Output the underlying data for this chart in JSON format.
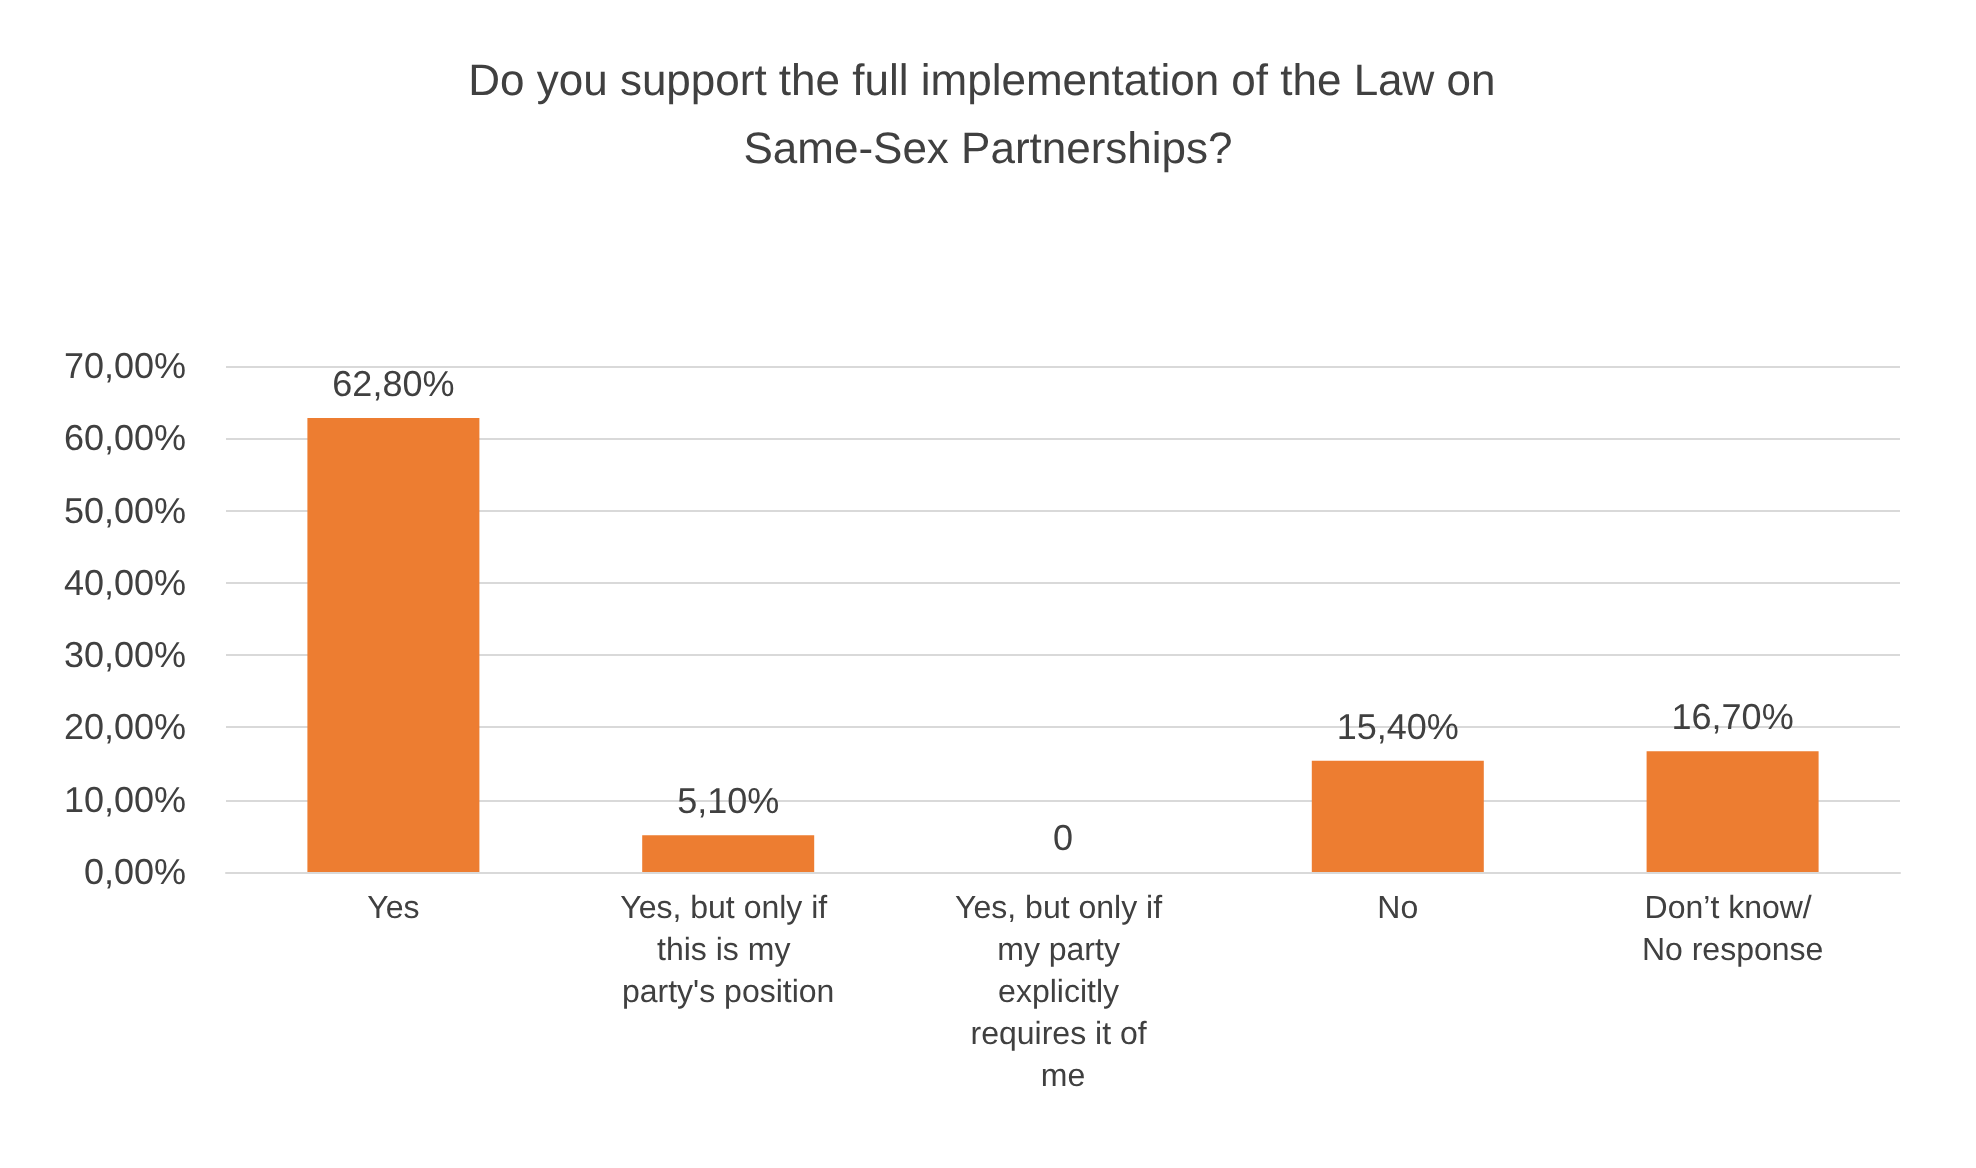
{
  "chart_data": {
    "type": "bar",
    "title": "Do you support the full implementation of the Law on Same-Sex Partnerships?",
    "categories": [
      "Yes",
      "Yes, but only if this is my party's position",
      "Yes, but only if my party explicitly requires it of me",
      "No",
      "Don’t know/ No response"
    ],
    "values": [
      62.8,
      5.1,
      0,
      15.4,
      16.7
    ],
    "value_labels": [
      "62,80%",
      "5,10%",
      "0",
      "15,40%",
      "16,70%"
    ],
    "color": "#ed7d31",
    "ylim": [
      0,
      70
    ],
    "yticks": [
      {
        "value": 0,
        "label": "0,00%"
      },
      {
        "value": 10,
        "label": "10,00%"
      },
      {
        "value": 20,
        "label": "20,00%"
      },
      {
        "value": 30,
        "label": "30,00%"
      },
      {
        "value": 40,
        "label": "40,00%"
      },
      {
        "value": 50,
        "label": "50,00%"
      },
      {
        "value": 60,
        "label": "60,00%"
      },
      {
        "value": 70,
        "label": "70,00%"
      }
    ],
    "grid": "y"
  }
}
